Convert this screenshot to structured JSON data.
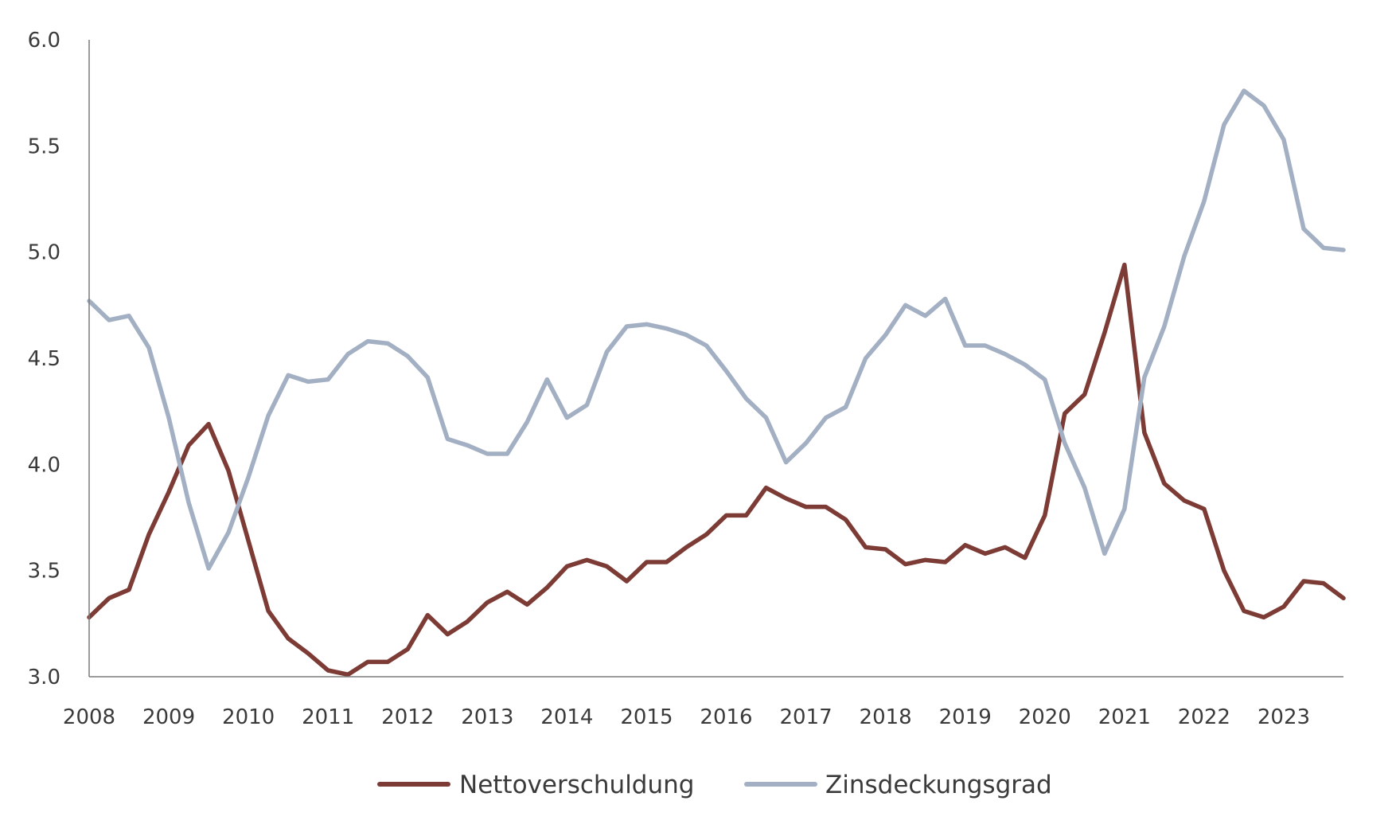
{
  "chart_data": {
    "type": "line",
    "title": "",
    "xlabel": "",
    "ylabel": "",
    "ylim": [
      3.0,
      6.0
    ],
    "xlim": [
      2008.0,
      2023.75
    ],
    "y_ticks": [
      "3.0",
      "3.5",
      "4.0",
      "4.5",
      "5.0",
      "5.5",
      "6.0"
    ],
    "x_ticks": [
      "2008",
      "2009",
      "2010",
      "2011",
      "2012",
      "2013",
      "2014",
      "2015",
      "2016",
      "2017",
      "2018",
      "2019",
      "2020",
      "2021",
      "2022",
      "2023"
    ],
    "grid": false,
    "legend_position": "bottom-center",
    "x": [
      2008.0,
      2008.25,
      2008.5,
      2008.75,
      2009.0,
      2009.25,
      2009.5,
      2009.75,
      2010.0,
      2010.25,
      2010.5,
      2010.75,
      2011.0,
      2011.25,
      2011.5,
      2011.75,
      2012.0,
      2012.25,
      2012.5,
      2012.75,
      2013.0,
      2013.25,
      2013.5,
      2013.75,
      2014.0,
      2014.25,
      2014.5,
      2014.75,
      2015.0,
      2015.25,
      2015.5,
      2015.75,
      2016.0,
      2016.25,
      2016.5,
      2016.75,
      2017.0,
      2017.25,
      2017.5,
      2017.75,
      2018.0,
      2018.25,
      2018.5,
      2018.75,
      2019.0,
      2019.25,
      2019.5,
      2019.75,
      2020.0,
      2020.25,
      2020.5,
      2020.75,
      2021.0,
      2021.25,
      2021.5,
      2021.75,
      2022.0,
      2022.25,
      2022.5,
      2022.75,
      2023.0,
      2023.25,
      2023.5,
      2023.75
    ],
    "series": [
      {
        "name": "Nettoverschuldung",
        "color": "#7d3b35",
        "values": [
          3.28,
          3.37,
          3.41,
          3.67,
          3.87,
          4.09,
          4.19,
          3.97,
          3.64,
          3.31,
          3.18,
          3.11,
          3.03,
          3.01,
          3.07,
          3.07,
          3.13,
          3.29,
          3.2,
          3.26,
          3.35,
          3.4,
          3.34,
          3.42,
          3.52,
          3.55,
          3.52,
          3.45,
          3.54,
          3.54,
          3.61,
          3.67,
          3.76,
          3.76,
          3.89,
          3.84,
          3.8,
          3.8,
          3.74,
          3.61,
          3.6,
          3.53,
          3.55,
          3.54,
          3.62,
          3.58,
          3.61,
          3.56,
          3.76,
          4.24,
          4.33,
          4.62,
          4.94,
          4.15,
          3.91,
          3.83,
          3.79,
          3.5,
          3.31,
          3.28,
          3.33,
          3.45,
          3.44,
          3.37
        ]
      },
      {
        "name": "Zinsdeckungsgrad",
        "color": "#a3b0c4",
        "values": [
          4.77,
          4.68,
          4.7,
          4.55,
          4.22,
          3.82,
          3.51,
          3.68,
          3.94,
          4.23,
          4.42,
          4.39,
          4.4,
          4.52,
          4.58,
          4.57,
          4.51,
          4.41,
          4.12,
          4.09,
          4.05,
          4.05,
          4.2,
          4.4,
          4.22,
          4.28,
          4.53,
          4.65,
          4.66,
          4.64,
          4.61,
          4.56,
          4.44,
          4.31,
          4.22,
          4.01,
          4.1,
          4.22,
          4.27,
          4.5,
          4.61,
          4.75,
          4.7,
          4.78,
          4.56,
          4.56,
          4.52,
          4.47,
          4.4,
          4.1,
          3.89,
          3.58,
          3.79,
          4.41,
          4.65,
          4.98,
          5.24,
          5.6,
          5.76,
          5.69,
          5.53,
          5.11,
          5.02,
          5.01
        ]
      }
    ]
  }
}
